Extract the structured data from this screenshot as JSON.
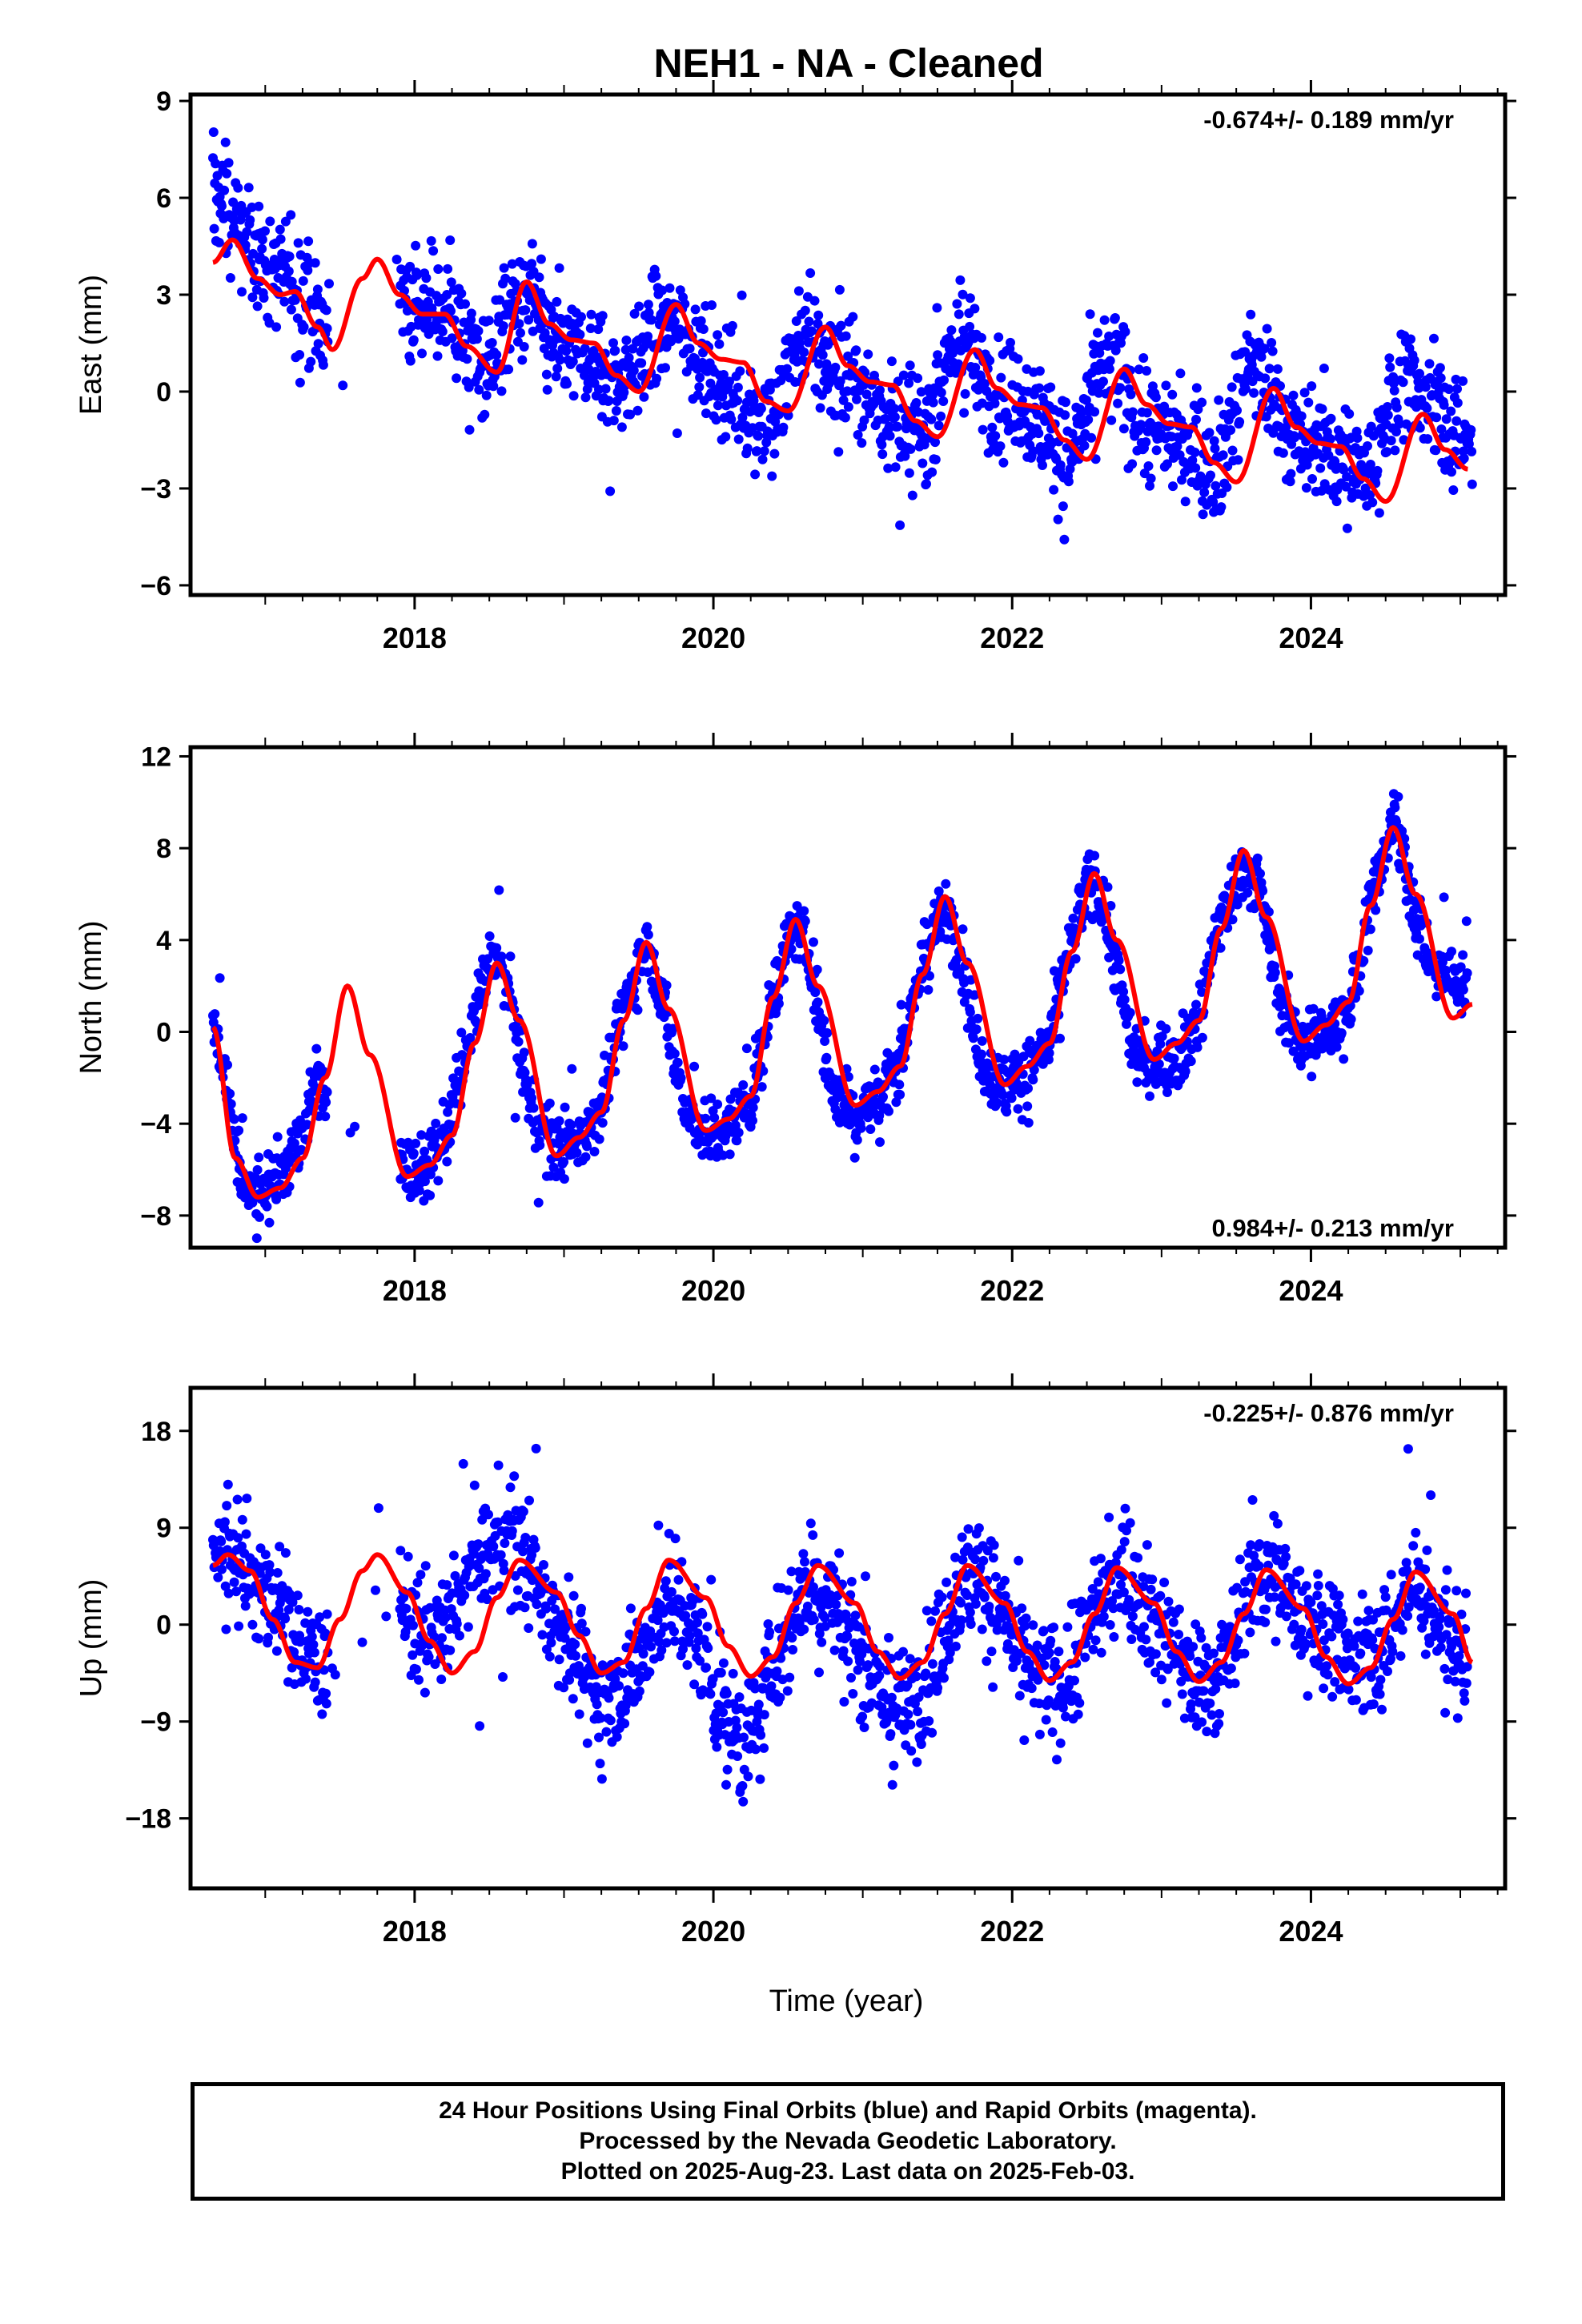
{
  "title": "NEH1  - NA - Cleaned",
  "colors": {
    "points": "#0000ff",
    "model": "#ff0000",
    "frame": "#000000",
    "background": "#ffffff"
  },
  "chart_data": [
    {
      "type": "scatter",
      "panel": "east",
      "ylabel": "East (mm)",
      "xlim": [
        2016.5,
        2025.3
      ],
      "ylim": [
        -6.3,
        9.2
      ],
      "yticks": [
        -6,
        -3,
        0,
        3,
        6,
        9
      ],
      "ytick_labels": [
        "−6",
        "−3",
        "0",
        "3",
        "6",
        "9"
      ],
      "xticks": [
        2018,
        2020,
        2022,
        2024
      ],
      "xtick_labels": [
        "2018",
        "2020",
        "2022",
        "2024"
      ],
      "grid": false,
      "annotation": "-0.674+/- 0.189 mm/yr",
      "annotation_position": "top-right",
      "series": [
        {
          "role": "daily positions (approximate density samples)",
          "x": [
            2016.65,
            2016.72,
            2016.8,
            2016.88,
            2016.95,
            2017.05,
            2017.15,
            2017.25,
            2017.35,
            2017.95,
            2018.1,
            2018.2,
            2018.3,
            2018.4,
            2018.5,
            2018.6,
            2018.7,
            2018.8,
            2018.9,
            2019.0,
            2019.1,
            2019.2,
            2019.3,
            2019.45,
            2019.6,
            2019.75,
            2019.9,
            2020.0,
            2020.1,
            2020.2,
            2020.3,
            2020.4,
            2020.5,
            2020.6,
            2020.7,
            2020.8,
            2020.9,
            2021.0,
            2021.1,
            2021.2,
            2021.3,
            2021.4,
            2021.5,
            2021.6,
            2021.7,
            2021.8,
            2021.9,
            2022.0,
            2022.1,
            2022.2,
            2022.3,
            2022.4,
            2022.5,
            2022.6,
            2022.7,
            2022.8,
            2022.9,
            2023.0,
            2023.1,
            2023.2,
            2023.3,
            2023.4,
            2023.5,
            2023.6,
            2023.7,
            2023.8,
            2023.9,
            2024.0,
            2024.1,
            2024.2,
            2024.3,
            2024.4,
            2024.5,
            2024.6,
            2024.7,
            2024.8,
            2024.9,
            2025.0,
            2025.08
          ],
          "y": [
            6.3,
            5.8,
            5.2,
            4.6,
            4.2,
            3.9,
            3.5,
            3.0,
            2.0,
            2.8,
            2.5,
            2.6,
            2.1,
            1.0,
            0.9,
            2.0,
            2.9,
            2.8,
            1.6,
            1.4,
            1.2,
            0.9,
            0.4,
            0.5,
            2.0,
            2.2,
            1.3,
            0.4,
            0.2,
            -0.4,
            -0.9,
            -1.1,
            0.6,
            1.5,
            1.3,
            0.5,
            0.3,
            0.2,
            -0.2,
            -0.8,
            -1.3,
            -1.4,
            0.2,
            1.4,
            1.6,
            0.3,
            -0.3,
            -0.2,
            -0.5,
            -1.0,
            -1.8,
            -2.3,
            -0.6,
            0.8,
            0.7,
            -0.3,
            -1.0,
            -1.0,
            -1.2,
            -1.8,
            -2.3,
            -2.1,
            -0.5,
            0.9,
            0.4,
            -0.8,
            -1.5,
            -1.6,
            -1.7,
            -2.1,
            -2.4,
            -2.2,
            -0.7,
            0.3,
            0.1,
            -0.4,
            -0.9,
            -1.1,
            -1.4
          ],
          "spread": 1.6
        },
        {
          "role": "seasonal + trend model",
          "x": [
            2016.65,
            2016.78,
            2016.95,
            2017.1,
            2017.2,
            2017.35,
            2017.45,
            2017.65,
            2017.75,
            2017.9,
            2018.05,
            2018.2,
            2018.35,
            2018.55,
            2018.75,
            2018.9,
            2019.05,
            2019.2,
            2019.35,
            2019.5,
            2019.75,
            2019.9,
            2020.05,
            2020.2,
            2020.35,
            2020.5,
            2020.75,
            2020.9,
            2021.05,
            2021.2,
            2021.35,
            2021.5,
            2021.75,
            2021.9,
            2022.05,
            2022.2,
            2022.35,
            2022.5,
            2022.75,
            2022.9,
            2023.05,
            2023.2,
            2023.35,
            2023.5,
            2023.75,
            2023.9,
            2024.05,
            2024.2,
            2024.35,
            2024.5,
            2024.75,
            2024.9,
            2025.05
          ],
          "y": [
            4.0,
            4.7,
            3.5,
            3.0,
            3.1,
            2.0,
            1.3,
            3.5,
            4.1,
            3.0,
            2.4,
            2.4,
            1.4,
            0.6,
            3.4,
            2.1,
            1.6,
            1.5,
            0.5,
            0.0,
            2.7,
            1.5,
            1.0,
            0.9,
            -0.3,
            -0.6,
            2.0,
            0.8,
            0.3,
            0.2,
            -0.9,
            -1.4,
            1.3,
            0.1,
            -0.4,
            -0.5,
            -1.5,
            -2.1,
            0.7,
            -0.4,
            -1.0,
            -1.1,
            -2.2,
            -2.8,
            0.1,
            -1.1,
            -1.6,
            -1.7,
            -2.7,
            -3.4,
            -0.7,
            -1.8,
            -2.4
          ]
        }
      ]
    },
    {
      "type": "scatter",
      "panel": "north",
      "ylabel": "North (mm)",
      "xlim": [
        2016.5,
        2025.3
      ],
      "ylim": [
        -9.4,
        12.4
      ],
      "yticks": [
        -8,
        -4,
        0,
        4,
        8,
        12
      ],
      "ytick_labels": [
        "−8",
        "−4",
        "0",
        "4",
        "8",
        "12"
      ],
      "xticks": [
        2018,
        2020,
        2022,
        2024
      ],
      "xtick_labels": [
        "2018",
        "2020",
        "2022",
        "2024"
      ],
      "grid": false,
      "annotation": "0.984+/- 0.213 mm/yr",
      "annotation_position": "bottom-right",
      "series": [
        {
          "role": "daily positions (approximate density samples)",
          "x": [
            2016.65,
            2016.75,
            2016.85,
            2016.95,
            2017.05,
            2017.15,
            2017.25,
            2017.35,
            2017.95,
            2018.05,
            2018.2,
            2018.35,
            2018.45,
            2018.55,
            2018.65,
            2018.8,
            2018.95,
            2019.1,
            2019.25,
            2019.4,
            2019.55,
            2019.65,
            2019.8,
            2019.95,
            2020.1,
            2020.25,
            2020.4,
            2020.55,
            2020.65,
            2020.8,
            2020.95,
            2021.1,
            2021.25,
            2021.4,
            2021.55,
            2021.65,
            2021.8,
            2021.95,
            2022.1,
            2022.25,
            2022.4,
            2022.55,
            2022.65,
            2022.8,
            2022.95,
            2023.1,
            2023.25,
            2023.4,
            2023.55,
            2023.65,
            2023.8,
            2023.95,
            2024.1,
            2024.25,
            2024.4,
            2024.55,
            2024.65,
            2024.8,
            2024.95,
            2025.05
          ],
          "y": [
            0.5,
            -3.0,
            -6.2,
            -6.8,
            -6.5,
            -5.8,
            -4.5,
            -2.0,
            -6.0,
            -5.8,
            -4.8,
            -1.0,
            2.0,
            3.5,
            1.0,
            -4.0,
            -5.0,
            -4.5,
            -3.2,
            1.0,
            4.0,
            1.5,
            -3.0,
            -4.5,
            -4.2,
            -3.0,
            1.5,
            5.0,
            3.0,
            -2.5,
            -3.5,
            -3.0,
            -1.0,
            3.0,
            5.5,
            3.5,
            -1.5,
            -2.5,
            -2.0,
            -0.5,
            4.0,
            7.0,
            4.5,
            -0.5,
            -1.5,
            -1.2,
            0.5,
            5.0,
            7.0,
            6.5,
            1.0,
            -0.5,
            0.0,
            1.0,
            5.5,
            9.5,
            6.5,
            3.0,
            2.0,
            2.5
          ],
          "spread": 1.3
        },
        {
          "role": "seasonal + trend model",
          "x": [
            2016.65,
            2016.8,
            2016.95,
            2017.1,
            2017.25,
            2017.4,
            2017.55,
            2017.7,
            2017.95,
            2018.1,
            2018.25,
            2018.4,
            2018.55,
            2018.7,
            2018.95,
            2019.1,
            2019.25,
            2019.4,
            2019.55,
            2019.7,
            2019.95,
            2020.1,
            2020.25,
            2020.4,
            2020.55,
            2020.7,
            2020.95,
            2021.1,
            2021.25,
            2021.4,
            2021.55,
            2021.7,
            2021.95,
            2022.1,
            2022.25,
            2022.4,
            2022.55,
            2022.7,
            2022.95,
            2023.1,
            2023.25,
            2023.4,
            2023.55,
            2023.7,
            2023.95,
            2024.1,
            2024.25,
            2024.4,
            2024.55,
            2024.7,
            2024.95,
            2025.08
          ],
          "y": [
            0.2,
            -5.5,
            -7.2,
            -6.8,
            -5.5,
            -2.0,
            2.0,
            -1.0,
            -6.3,
            -5.8,
            -4.5,
            -0.5,
            3.0,
            0.5,
            -5.4,
            -4.6,
            -3.5,
            0.5,
            3.9,
            1.0,
            -4.3,
            -3.8,
            -2.8,
            1.5,
            4.9,
            2.0,
            -3.2,
            -2.6,
            -1.5,
            2.5,
            5.9,
            3.0,
            -2.3,
            -1.5,
            -0.5,
            3.5,
            6.9,
            4.0,
            -1.2,
            -0.5,
            0.5,
            4.5,
            7.9,
            5.0,
            -0.4,
            0.3,
            1.3,
            5.5,
            8.9,
            6.0,
            0.6,
            1.2
          ]
        }
      ]
    },
    {
      "type": "scatter",
      "panel": "up",
      "ylabel": "Up (mm)",
      "xlabel": "Time (year)",
      "xlim": [
        2016.5,
        2025.3
      ],
      "ylim": [
        -24.5,
        22.0
      ],
      "yticks": [
        -18,
        -9,
        0,
        9,
        18
      ],
      "ytick_labels": [
        "−18",
        "−9",
        "0",
        "9",
        "18"
      ],
      "xticks": [
        2018,
        2020,
        2022,
        2024
      ],
      "xtick_labels": [
        "2018",
        "2020",
        "2022",
        "2024"
      ],
      "grid": false,
      "annotation": "-0.225+/- 0.876 mm/yr",
      "annotation_position": "top-right",
      "series": [
        {
          "role": "daily positions (approximate density samples)",
          "x": [
            2016.65,
            2016.75,
            2016.85,
            2016.95,
            2017.05,
            2017.15,
            2017.25,
            2017.35,
            2017.85,
            2018.05,
            2018.2,
            2018.35,
            2018.5,
            2018.65,
            2018.8,
            2018.95,
            2019.1,
            2019.25,
            2019.4,
            2019.55,
            2019.7,
            2019.85,
            2020.0,
            2020.1,
            2020.2,
            2020.3,
            2020.45,
            2020.6,
            2020.75,
            2020.9,
            2021.05,
            2021.2,
            2021.35,
            2021.5,
            2021.65,
            2021.8,
            2021.95,
            2022.1,
            2022.25,
            2022.4,
            2022.55,
            2022.7,
            2022.85,
            2023.0,
            2023.15,
            2023.3,
            2023.45,
            2023.6,
            2023.75,
            2023.9,
            2024.05,
            2024.2,
            2024.35,
            2024.5,
            2024.65,
            2024.8,
            2024.95,
            2025.05
          ],
          "y": [
            9.0,
            8.0,
            6.0,
            3.0,
            2.0,
            1.0,
            -2.0,
            -4.0,
            4.0,
            -2.0,
            -1.0,
            4.0,
            7.0,
            8.0,
            5.0,
            1.0,
            -4.0,
            -7.0,
            -6.0,
            -2.0,
            3.0,
            0.0,
            -6.0,
            -9.0,
            -12.0,
            -8.0,
            -2.0,
            4.0,
            3.0,
            0.0,
            -4.0,
            -8.0,
            -7.0,
            -3.0,
            4.0,
            4.0,
            0.0,
            -4.0,
            -6.0,
            -4.0,
            2.0,
            5.0,
            3.0,
            -1.0,
            -4.0,
            -6.0,
            -3.0,
            4.0,
            5.0,
            2.0,
            0.0,
            -2.0,
            -4.0,
            -1.0,
            3.0,
            3.0,
            -1.0,
            -4.0
          ],
          "spread": 5.0
        },
        {
          "role": "seasonal + trend model",
          "x": [
            2016.65,
            2016.75,
            2016.9,
            2017.05,
            2017.2,
            2017.35,
            2017.5,
            2017.65,
            2017.75,
            2017.95,
            2018.1,
            2018.25,
            2018.4,
            2018.55,
            2018.7,
            2018.95,
            2019.1,
            2019.25,
            2019.4,
            2019.55,
            2019.7,
            2019.95,
            2020.1,
            2020.25,
            2020.4,
            2020.55,
            2020.7,
            2020.95,
            2021.1,
            2021.25,
            2021.4,
            2021.55,
            2021.7,
            2021.95,
            2022.1,
            2022.25,
            2022.4,
            2022.55,
            2022.7,
            2022.95,
            2023.1,
            2023.25,
            2023.4,
            2023.55,
            2023.7,
            2023.95,
            2024.1,
            2024.25,
            2024.4,
            2024.55,
            2024.7,
            2024.95,
            2025.08
          ],
          "y": [
            5.5,
            6.5,
            5.0,
            0.5,
            -3.5,
            -4.0,
            0.5,
            5.0,
            6.5,
            3.0,
            -1.5,
            -4.5,
            -2.5,
            2.5,
            6.0,
            3.0,
            -1.0,
            -4.5,
            -3.5,
            1.5,
            6.0,
            2.5,
            -2.0,
            -4.8,
            -3.0,
            2.0,
            5.5,
            2.0,
            -2.5,
            -5.0,
            -3.5,
            1.0,
            5.5,
            2.0,
            -2.5,
            -5.2,
            -3.5,
            1.0,
            5.3,
            2.0,
            -2.5,
            -5.3,
            -3.5,
            1.0,
            5.1,
            1.5,
            -3.0,
            -5.5,
            -4.0,
            0.5,
            4.9,
            1.0,
            -3.5
          ]
        }
      ]
    }
  ],
  "footer": {
    "line1": "24 Hour Positions Using Final Orbits (blue) and Rapid Orbits (magenta).",
    "line2": "Processed by the Nevada Geodetic Laboratory.",
    "line3": "Plotted on 2025-Aug-23. Last data on 2025-Feb-03."
  }
}
